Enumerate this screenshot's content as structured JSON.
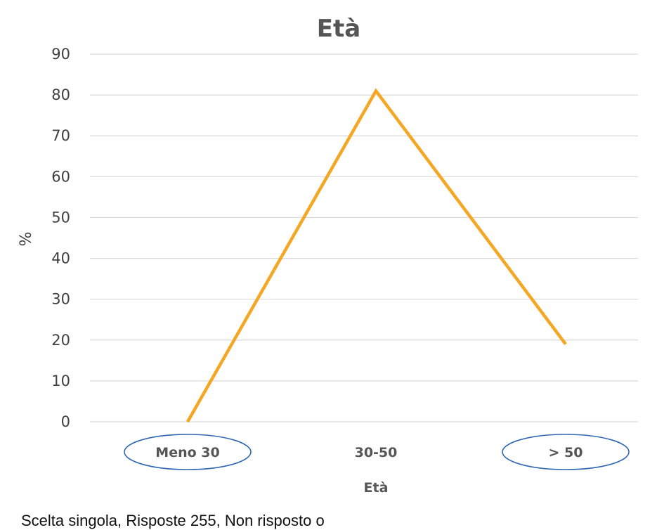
{
  "chart_data": {
    "type": "line",
    "title": "Età",
    "xlabel": "Età",
    "ylabel": "%",
    "categories": [
      "Meno 30",
      "30-50",
      "> 50"
    ],
    "series": [
      {
        "values": [
          0,
          81,
          19
        ],
        "color": "#f5a623"
      }
    ],
    "ylim": [
      0,
      90
    ],
    "yticks": [
      "0",
      "10",
      "20",
      "30",
      "40",
      "50",
      "60",
      "70",
      "80",
      "90"
    ],
    "grid": true,
    "legend": "none",
    "highlighted_categories": [
      "Meno 30",
      "> 50"
    ],
    "highlight_color": "#2f66b3"
  },
  "footnote": "Scelta singola, Risposte 255, Non risposto o"
}
